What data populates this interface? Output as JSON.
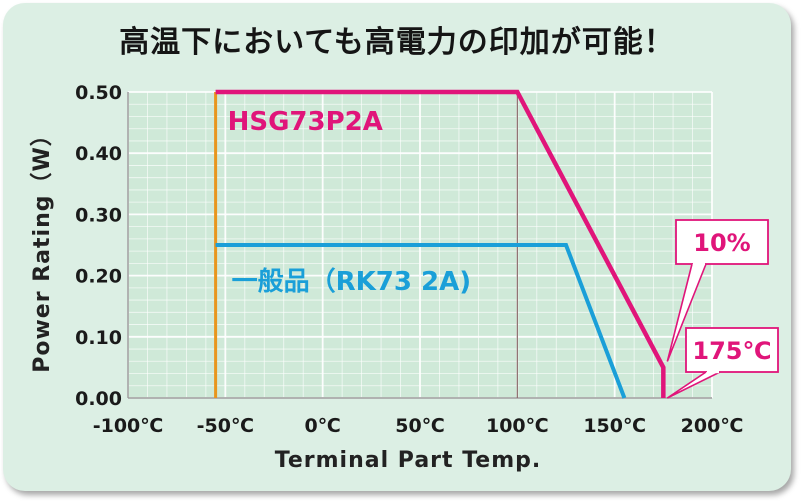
{
  "page": {
    "title": "高温下においても高電力の印加が可能！"
  },
  "chart_data": {
    "type": "line",
    "xlabel": "Terminal Part Temp.",
    "ylabel": "Power Rating（W）",
    "xlim": [
      -100,
      200
    ],
    "ylim": [
      0,
      0.5
    ],
    "x_ticks": [
      "-100℃",
      "-50℃",
      "0℃",
      "50℃",
      "100℃",
      "150℃",
      "200℃"
    ],
    "x_tick_values": [
      -100,
      -50,
      0,
      50,
      100,
      150,
      200
    ],
    "y_ticks": [
      "0.00",
      "0.10",
      "0.20",
      "0.30",
      "0.40",
      "0.50"
    ],
    "y_tick_values": [
      0,
      0.1,
      0.2,
      0.3,
      0.4,
      0.5
    ],
    "grid": true,
    "series": [
      {
        "name": "HSG73P2A",
        "color": "#e0157a",
        "x": [
          -55,
          100,
          175,
          175
        ],
        "y": [
          0.5,
          0.5,
          0.05,
          0.0
        ]
      },
      {
        "name": "一般品（RK73 2A)",
        "color": "#1a9fd8",
        "x": [
          -55,
          125,
          155
        ],
        "y": [
          0.25,
          0.25,
          0.0
        ]
      }
    ],
    "reference_lines": [
      {
        "axis": "x",
        "value": -55,
        "color": "#e8961e"
      },
      {
        "axis": "x",
        "value": 100,
        "color": "#8a6a6a"
      }
    ],
    "annotations": [
      {
        "text": "10%",
        "color": "#e0157a"
      },
      {
        "text": "175℃",
        "color": "#e0157a"
      }
    ]
  }
}
